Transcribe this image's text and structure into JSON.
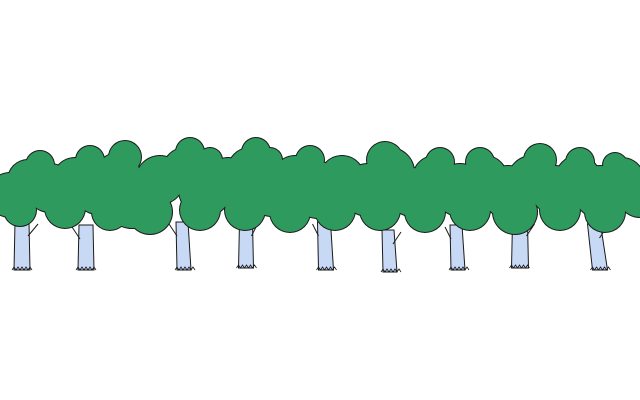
{
  "scene": {
    "background_color": "#ffffff",
    "foliage_color": "#2f9a5e",
    "trunk_color": "#c7d9f5",
    "outline_color": "#1a1a1a",
    "tree_count": 9
  }
}
